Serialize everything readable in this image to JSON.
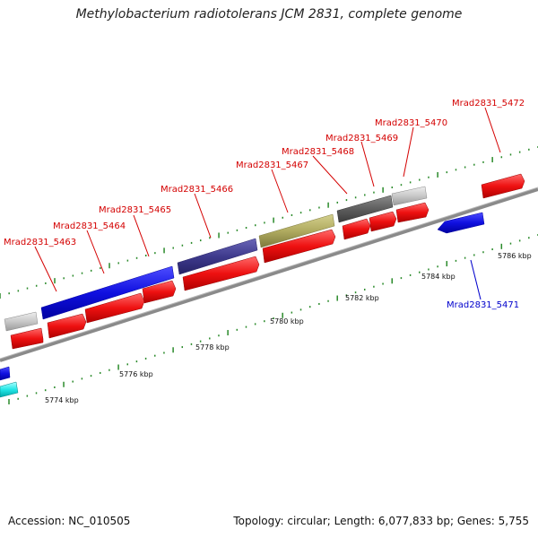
{
  "title": "Methylobacterium radiotolerans JCM 2831, complete genome",
  "footer": {
    "accession": "Accession: NC_010505",
    "summary": "Topology: circular; Length: 6,077,833 bp; Genes: 5,755"
  },
  "colors": {
    "forward_cds": "#ee1111",
    "backbone": "#888888",
    "tick": "#2a8a2a",
    "label_red": "#d40000",
    "label_blue": "#0000cc"
  },
  "kbp_marks": [
    {
      "label": "5774 kbp"
    },
    {
      "label": "5776 kbp"
    },
    {
      "label": "5778 kbp"
    },
    {
      "label": "5780 kbp"
    },
    {
      "label": "5782 kbp"
    },
    {
      "label": "5784 kbp"
    },
    {
      "label": "5786 kbp"
    }
  ],
  "genes": [
    {
      "label": "Mrad2831_5463",
      "color": "red"
    },
    {
      "label": "Mrad2831_5464",
      "color": "red"
    },
    {
      "label": "Mrad2831_5465",
      "color": "red"
    },
    {
      "label": "Mrad2831_5466",
      "color": "red"
    },
    {
      "label": "Mrad2831_5467",
      "color": "red"
    },
    {
      "label": "Mrad2831_5468",
      "color": "red"
    },
    {
      "label": "Mrad2831_5469",
      "color": "red"
    },
    {
      "label": "Mrad2831_5470",
      "color": "red"
    },
    {
      "label": "Mrad2831_5471",
      "color": "blue"
    },
    {
      "label": "Mrad2831_5472",
      "color": "red"
    }
  ]
}
